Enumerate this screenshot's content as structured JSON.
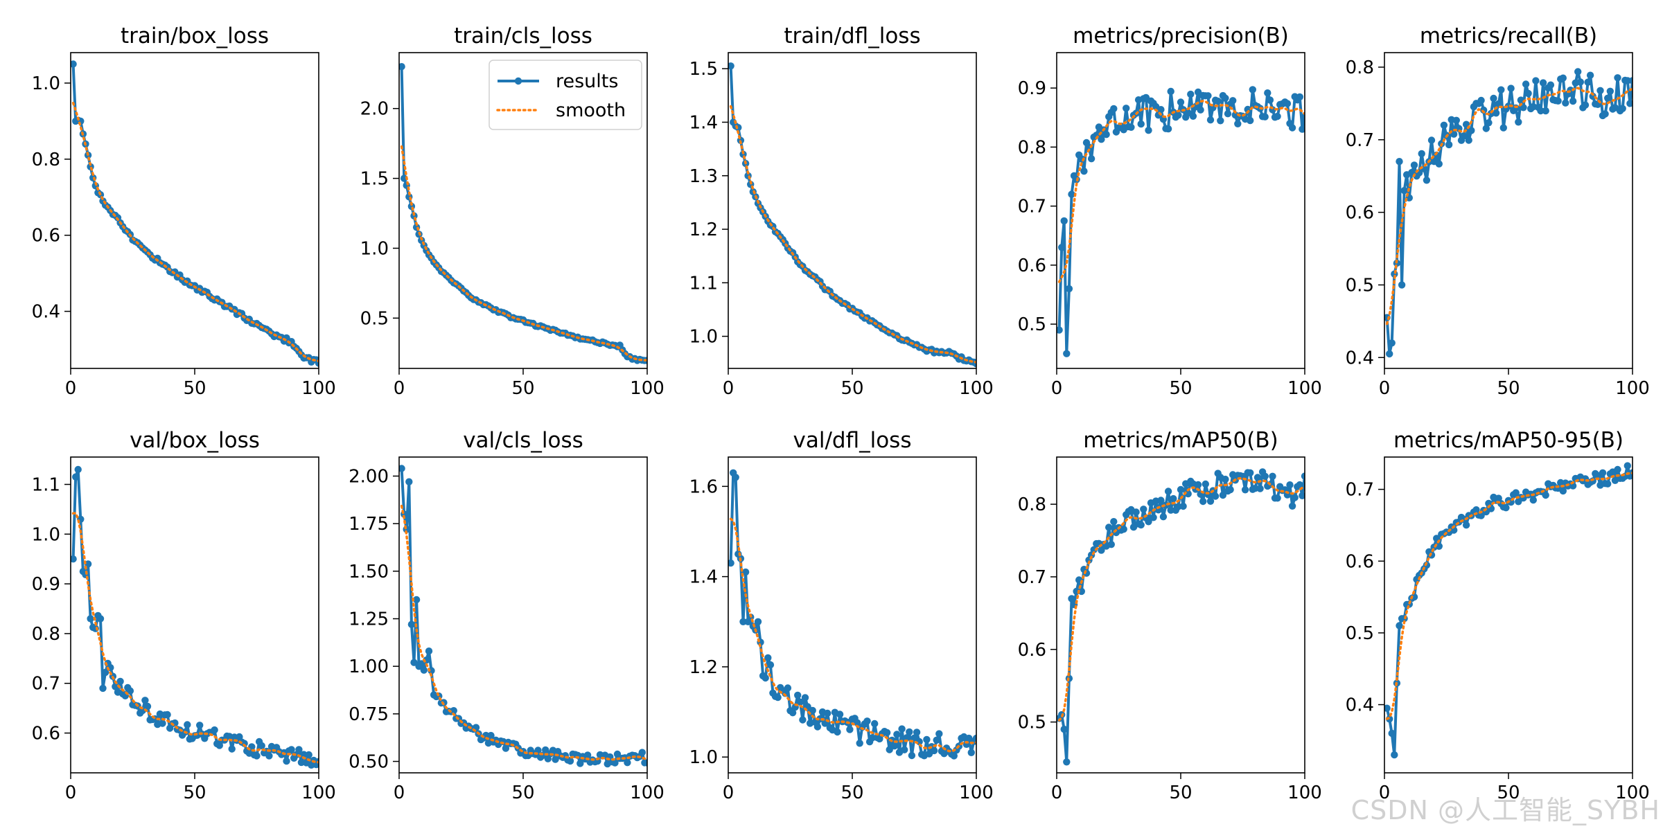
{
  "figure": {
    "watermark": "CSDN @人工智能_SYBH"
  },
  "colors": {
    "results": "#1f77b4",
    "smooth": "#ff7f0e",
    "axis": "#000000"
  },
  "legend": {
    "results_label": "results",
    "smooth_label": "smooth"
  },
  "chart_data": [
    {
      "type": "line",
      "title": "train/box_loss",
      "xlim": [
        0,
        100
      ],
      "ylim": [
        0.25,
        1.08
      ],
      "xticks": [
        0,
        50,
        100
      ],
      "yticks": [
        0.4,
        0.6,
        0.8,
        1.0
      ],
      "ydecimals": 1,
      "anchors": [
        [
          1,
          1.05
        ],
        [
          2,
          0.9
        ],
        [
          4,
          0.9
        ],
        [
          6,
          0.84
        ],
        [
          8,
          0.78
        ],
        [
          10,
          0.73
        ],
        [
          13,
          0.69
        ],
        [
          16,
          0.665
        ],
        [
          20,
          0.635
        ],
        [
          25,
          0.59
        ],
        [
          30,
          0.56
        ],
        [
          35,
          0.535
        ],
        [
          40,
          0.51
        ],
        [
          45,
          0.485
        ],
        [
          50,
          0.465
        ],
        [
          55,
          0.445
        ],
        [
          60,
          0.425
        ],
        [
          65,
          0.405
        ],
        [
          70,
          0.385
        ],
        [
          75,
          0.365
        ],
        [
          80,
          0.345
        ],
        [
          85,
          0.33
        ],
        [
          89,
          0.32
        ],
        [
          91,
          0.305
        ],
        [
          93,
          0.285
        ],
        [
          96,
          0.275
        ],
        [
          100,
          0.265
        ]
      ],
      "noise": 0.006
    },
    {
      "type": "line",
      "title": "train/cls_loss",
      "xlim": [
        0,
        100
      ],
      "ylim": [
        0.14,
        2.4
      ],
      "xticks": [
        0,
        50,
        100
      ],
      "yticks": [
        0.5,
        1.0,
        1.5,
        2.0
      ],
      "ydecimals": 1,
      "legend": true,
      "anchors": [
        [
          1,
          2.3
        ],
        [
          2,
          1.5
        ],
        [
          3,
          1.45
        ],
        [
          5,
          1.3
        ],
        [
          7,
          1.15
        ],
        [
          10,
          1.02
        ],
        [
          13,
          0.93
        ],
        [
          16,
          0.86
        ],
        [
          20,
          0.79
        ],
        [
          25,
          0.71
        ],
        [
          30,
          0.64
        ],
        [
          35,
          0.59
        ],
        [
          40,
          0.55
        ],
        [
          45,
          0.51
        ],
        [
          50,
          0.48
        ],
        [
          55,
          0.45
        ],
        [
          60,
          0.42
        ],
        [
          65,
          0.4
        ],
        [
          70,
          0.37
        ],
        [
          75,
          0.35
        ],
        [
          80,
          0.33
        ],
        [
          85,
          0.31
        ],
        [
          89,
          0.3
        ],
        [
          91,
          0.24
        ],
        [
          94,
          0.21
        ],
        [
          97,
          0.2
        ],
        [
          100,
          0.19
        ]
      ],
      "noise": 0.008
    },
    {
      "type": "line",
      "title": "train/dfl_loss",
      "xlim": [
        0,
        100
      ],
      "ylim": [
        0.94,
        1.53
      ],
      "xticks": [
        0,
        50,
        100
      ],
      "yticks": [
        1.0,
        1.1,
        1.2,
        1.3,
        1.4,
        1.5
      ],
      "ydecimals": 1,
      "anchors": [
        [
          1,
          1.505
        ],
        [
          2,
          1.4
        ],
        [
          4,
          1.39
        ],
        [
          6,
          1.34
        ],
        [
          8,
          1.3
        ],
        [
          10,
          1.27
        ],
        [
          13,
          1.24
        ],
        [
          16,
          1.215
        ],
        [
          20,
          1.19
        ],
        [
          25,
          1.16
        ],
        [
          30,
          1.13
        ],
        [
          35,
          1.11
        ],
        [
          40,
          1.085
        ],
        [
          45,
          1.065
        ],
        [
          50,
          1.05
        ],
        [
          55,
          1.035
        ],
        [
          60,
          1.02
        ],
        [
          65,
          1.005
        ],
        [
          70,
          0.995
        ],
        [
          75,
          0.985
        ],
        [
          80,
          0.975
        ],
        [
          85,
          0.97
        ],
        [
          90,
          0.97
        ],
        [
          93,
          0.96
        ],
        [
          97,
          0.955
        ],
        [
          100,
          0.95
        ]
      ],
      "noise": 0.003
    },
    {
      "type": "line",
      "title": "metrics/precision(B)",
      "xlim": [
        0,
        100
      ],
      "ylim": [
        0.425,
        0.96
      ],
      "xticks": [
        0,
        50,
        100
      ],
      "yticks": [
        0.5,
        0.6,
        0.7,
        0.8,
        0.9
      ],
      "ydecimals": 1,
      "anchors": [
        [
          1,
          0.49
        ],
        [
          2,
          0.63
        ],
        [
          3,
          0.675
        ],
        [
          4,
          0.45
        ],
        [
          5,
          0.56
        ],
        [
          6,
          0.72
        ],
        [
          8,
          0.745
        ],
        [
          10,
          0.78
        ],
        [
          13,
          0.8
        ],
        [
          16,
          0.82
        ],
        [
          20,
          0.83
        ],
        [
          25,
          0.84
        ],
        [
          30,
          0.85
        ],
        [
          35,
          0.86
        ],
        [
          40,
          0.86
        ],
        [
          50,
          0.865
        ],
        [
          60,
          0.87
        ],
        [
          70,
          0.87
        ],
        [
          80,
          0.87
        ],
        [
          85,
          0.87
        ],
        [
          90,
          0.865
        ],
        [
          95,
          0.86
        ],
        [
          100,
          0.86
        ]
      ],
      "noise": 0.032
    },
    {
      "type": "line",
      "title": "metrics/recall(B)",
      "xlim": [
        0,
        100
      ],
      "ylim": [
        0.385,
        0.82
      ],
      "xticks": [
        0,
        50,
        100
      ],
      "yticks": [
        0.4,
        0.5,
        0.6,
        0.7,
        0.8
      ],
      "ydecimals": 1,
      "anchors": [
        [
          1,
          0.455
        ],
        [
          2,
          0.405
        ],
        [
          3,
          0.42
        ],
        [
          4,
          0.515
        ],
        [
          5,
          0.53
        ],
        [
          6,
          0.67
        ],
        [
          7,
          0.5
        ],
        [
          8,
          0.63
        ],
        [
          10,
          0.62
        ],
        [
          13,
          0.65
        ],
        [
          16,
          0.66
        ],
        [
          20,
          0.68
        ],
        [
          25,
          0.7
        ],
        [
          30,
          0.71
        ],
        [
          35,
          0.72
        ],
        [
          40,
          0.73
        ],
        [
          45,
          0.74
        ],
        [
          50,
          0.745
        ],
        [
          55,
          0.75
        ],
        [
          60,
          0.76
        ],
        [
          65,
          0.765
        ],
        [
          70,
          0.77
        ],
        [
          75,
          0.77
        ],
        [
          80,
          0.77
        ],
        [
          85,
          0.76
        ],
        [
          90,
          0.755
        ],
        [
          95,
          0.765
        ],
        [
          100,
          0.77
        ]
      ],
      "noise": 0.028
    },
    {
      "type": "line",
      "title": "val/box_loss",
      "xlim": [
        0,
        100
      ],
      "ylim": [
        0.52,
        1.155
      ],
      "xticks": [
        0,
        50,
        100
      ],
      "yticks": [
        0.6,
        0.7,
        0.8,
        0.9,
        1.0,
        1.1
      ],
      "ydecimals": 1,
      "anchors": [
        [
          1,
          0.95
        ],
        [
          2,
          1.115
        ],
        [
          3,
          1.13
        ],
        [
          4,
          1.03
        ],
        [
          5,
          0.925
        ],
        [
          7,
          0.94
        ],
        [
          8,
          0.83
        ],
        [
          10,
          0.81
        ],
        [
          12,
          0.83
        ],
        [
          13,
          0.69
        ],
        [
          15,
          0.74
        ],
        [
          18,
          0.7
        ],
        [
          22,
          0.68
        ],
        [
          25,
          0.67
        ],
        [
          30,
          0.65
        ],
        [
          35,
          0.635
        ],
        [
          40,
          0.62
        ],
        [
          45,
          0.61
        ],
        [
          50,
          0.6
        ],
        [
          55,
          0.595
        ],
        [
          60,
          0.59
        ],
        [
          65,
          0.58
        ],
        [
          70,
          0.575
        ],
        [
          75,
          0.57
        ],
        [
          80,
          0.565
        ],
        [
          85,
          0.56
        ],
        [
          90,
          0.555
        ],
        [
          95,
          0.55
        ],
        [
          100,
          0.545
        ]
      ],
      "noise": 0.018
    },
    {
      "type": "line",
      "title": "val/cls_loss",
      "xlim": [
        0,
        100
      ],
      "ylim": [
        0.44,
        2.1
      ],
      "xticks": [
        0,
        50,
        100
      ],
      "yticks": [
        0.5,
        0.75,
        1.0,
        1.25,
        1.5,
        1.75,
        2.0
      ],
      "ydecimals": 2,
      "anchors": [
        [
          1,
          2.04
        ],
        [
          2,
          1.8
        ],
        [
          3,
          1.72
        ],
        [
          4,
          1.97
        ],
        [
          5,
          1.22
        ],
        [
          6,
          1.02
        ],
        [
          7,
          1.35
        ],
        [
          8,
          1.0
        ],
        [
          10,
          0.98
        ],
        [
          12,
          1.08
        ],
        [
          14,
          0.85
        ],
        [
          17,
          0.82
        ],
        [
          20,
          0.77
        ],
        [
          25,
          0.71
        ],
        [
          30,
          0.66
        ],
        [
          35,
          0.63
        ],
        [
          40,
          0.6
        ],
        [
          45,
          0.575
        ],
        [
          50,
          0.56
        ],
        [
          55,
          0.545
        ],
        [
          60,
          0.535
        ],
        [
          65,
          0.525
        ],
        [
          70,
          0.515
        ],
        [
          75,
          0.51
        ],
        [
          80,
          0.51
        ],
        [
          85,
          0.515
        ],
        [
          90,
          0.52
        ],
        [
          95,
          0.52
        ],
        [
          100,
          0.52
        ]
      ],
      "noise": 0.028
    },
    {
      "type": "line",
      "title": "val/dfl_loss",
      "xlim": [
        0,
        100
      ],
      "ylim": [
        0.965,
        1.665
      ],
      "xticks": [
        0,
        50,
        100
      ],
      "yticks": [
        1.0,
        1.2,
        1.4,
        1.6
      ],
      "ydecimals": 1,
      "anchors": [
        [
          1,
          1.43
        ],
        [
          2,
          1.63
        ],
        [
          3,
          1.62
        ],
        [
          4,
          1.45
        ],
        [
          5,
          1.44
        ],
        [
          6,
          1.3
        ],
        [
          7,
          1.41
        ],
        [
          8,
          1.3
        ],
        [
          10,
          1.29
        ],
        [
          12,
          1.3
        ],
        [
          14,
          1.18
        ],
        [
          16,
          1.22
        ],
        [
          18,
          1.14
        ],
        [
          20,
          1.14
        ],
        [
          25,
          1.13
        ],
        [
          30,
          1.11
        ],
        [
          35,
          1.09
        ],
        [
          40,
          1.08
        ],
        [
          45,
          1.07
        ],
        [
          50,
          1.06
        ],
        [
          55,
          1.055
        ],
        [
          60,
          1.05
        ],
        [
          65,
          1.04
        ],
        [
          70,
          1.035
        ],
        [
          75,
          1.03
        ],
        [
          80,
          1.025
        ],
        [
          85,
          1.025
        ],
        [
          90,
          1.025
        ],
        [
          95,
          1.025
        ],
        [
          100,
          1.025
        ]
      ],
      "noise": 0.028
    },
    {
      "type": "line",
      "title": "metrics/mAP50(B)",
      "xlim": [
        0,
        100
      ],
      "ylim": [
        0.43,
        0.865
      ],
      "xticks": [
        0,
        50,
        100
      ],
      "yticks": [
        0.5,
        0.6,
        0.7,
        0.8
      ],
      "ydecimals": 1,
      "anchors": [
        [
          1,
          0.505
        ],
        [
          2,
          0.51
        ],
        [
          3,
          0.49
        ],
        [
          4,
          0.445
        ],
        [
          5,
          0.56
        ],
        [
          6,
          0.67
        ],
        [
          8,
          0.68
        ],
        [
          10,
          0.68
        ],
        [
          12,
          0.705
        ],
        [
          14,
          0.73
        ],
        [
          17,
          0.745
        ],
        [
          20,
          0.755
        ],
        [
          25,
          0.77
        ],
        [
          30,
          0.78
        ],
        [
          35,
          0.79
        ],
        [
          40,
          0.795
        ],
        [
          45,
          0.8
        ],
        [
          50,
          0.81
        ],
        [
          55,
          0.815
        ],
        [
          60,
          0.82
        ],
        [
          65,
          0.825
        ],
        [
          70,
          0.83
        ],
        [
          75,
          0.83
        ],
        [
          80,
          0.83
        ],
        [
          85,
          0.825
        ],
        [
          90,
          0.82
        ],
        [
          95,
          0.815
        ],
        [
          100,
          0.825
        ]
      ],
      "noise": 0.018
    },
    {
      "type": "line",
      "title": "metrics/mAP50-95(B)",
      "xlim": [
        0,
        100
      ],
      "ylim": [
        0.305,
        0.745
      ],
      "xticks": [
        0,
        50,
        100
      ],
      "yticks": [
        0.4,
        0.5,
        0.6,
        0.7
      ],
      "ydecimals": 1,
      "anchors": [
        [
          1,
          0.395
        ],
        [
          2,
          0.38
        ],
        [
          3,
          0.36
        ],
        [
          4,
          0.33
        ],
        [
          5,
          0.43
        ],
        [
          6,
          0.51
        ],
        [
          8,
          0.52
        ],
        [
          10,
          0.54
        ],
        [
          12,
          0.55
        ],
        [
          14,
          0.58
        ],
        [
          17,
          0.6
        ],
        [
          20,
          0.62
        ],
        [
          25,
          0.635
        ],
        [
          30,
          0.65
        ],
        [
          35,
          0.665
        ],
        [
          40,
          0.675
        ],
        [
          45,
          0.68
        ],
        [
          50,
          0.685
        ],
        [
          55,
          0.69
        ],
        [
          60,
          0.695
        ],
        [
          65,
          0.7
        ],
        [
          70,
          0.705
        ],
        [
          75,
          0.71
        ],
        [
          80,
          0.715
        ],
        [
          85,
          0.715
        ],
        [
          90,
          0.715
        ],
        [
          95,
          0.72
        ],
        [
          100,
          0.725
        ]
      ],
      "noise": 0.01
    }
  ]
}
